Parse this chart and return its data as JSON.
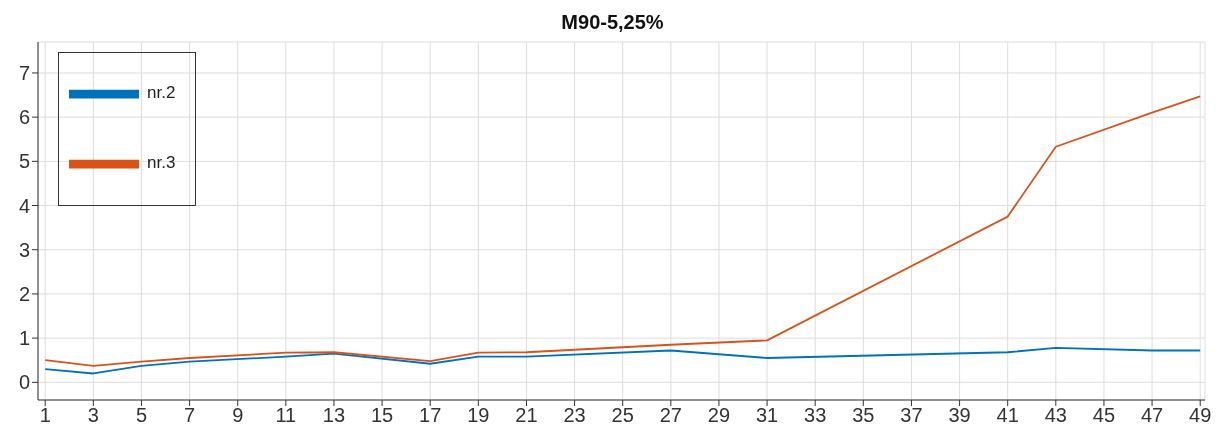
{
  "chart_data": {
    "type": "line",
    "title": "M90-5,25%",
    "x": [
      1,
      3,
      5,
      7,
      11,
      13,
      17,
      19,
      21,
      27,
      31,
      41,
      43,
      47,
      49
    ],
    "series": [
      {
        "name": "nr.2",
        "color": "#0072bd",
        "values": [
          0.3,
          0.2,
          0.37,
          0.47,
          0.58,
          0.65,
          0.42,
          0.58,
          0.58,
          0.72,
          0.55,
          0.68,
          0.78,
          0.72,
          0.72
        ]
      },
      {
        "name": "nr.3",
        "color": "#d95319",
        "values": [
          0.5,
          0.37,
          0.47,
          0.55,
          0.67,
          0.68,
          0.48,
          0.67,
          0.68,
          0.85,
          0.95,
          3.75,
          5.33,
          6.1,
          6.47
        ]
      }
    ],
    "xlim": [
      0.7,
      49.2
    ],
    "xticks": [
      1,
      3,
      5,
      7,
      9,
      11,
      13,
      15,
      17,
      19,
      21,
      23,
      25,
      27,
      29,
      31,
      33,
      35,
      37,
      39,
      41,
      43,
      45,
      47,
      49
    ],
    "ylim": [
      -0.4,
      7.7
    ],
    "yticks": [
      0,
      1,
      2,
      3,
      4,
      5,
      6,
      7
    ],
    "grid": true,
    "legend": "top left",
    "marker": "none",
    "line_style": "solid"
  }
}
